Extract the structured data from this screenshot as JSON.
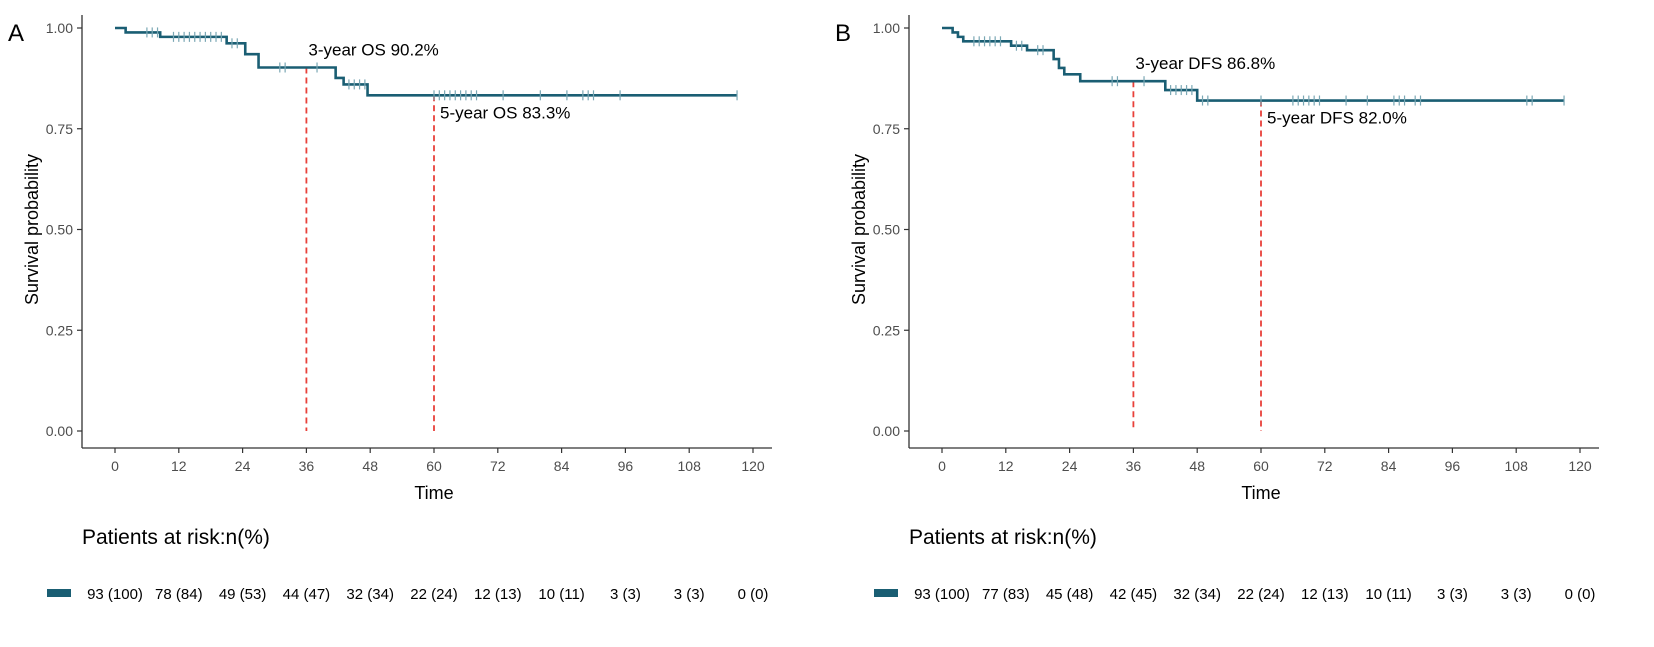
{
  "chart_data": [
    {
      "panel_label": "A",
      "type": "line",
      "subtype": "kaplan-meier",
      "xlabel": "Time",
      "ylabel": "Survival probability",
      "xlim": [
        0,
        120
      ],
      "ylim": [
        0,
        1
      ],
      "x_ticks": [
        0,
        12,
        24,
        36,
        48,
        60,
        72,
        84,
        96,
        108,
        120
      ],
      "x_tick_labels": [
        "0",
        "12",
        "24",
        "36",
        "48",
        "60",
        "72",
        "84",
        "96",
        "108",
        "120"
      ],
      "y_ticks": [
        0,
        0.25,
        0.5,
        0.75,
        1.0
      ],
      "y_tick_labels": [
        "0.00",
        "0.25",
        "0.50",
        "0.75",
        "1.00"
      ],
      "grid": false,
      "line_color": "#1a5e73",
      "reference_color": "#e8403a",
      "series": [
        {
          "name": "OS",
          "steps": [
            [
              0,
              1.0
            ],
            [
              2,
              0.989
            ],
            [
              8.5,
              0.978
            ],
            [
              21,
              0.962
            ],
            [
              24.5,
              0.935
            ],
            [
              27,
              0.902
            ],
            [
              41.5,
              0.876
            ],
            [
              43,
              0.86
            ],
            [
              47.5,
              0.833
            ],
            [
              117,
              0.833
            ]
          ],
          "censors": [
            [
              6,
              0.989
            ],
            [
              7,
              0.989
            ],
            [
              8,
              0.989
            ],
            [
              11,
              0.978
            ],
            [
              12,
              0.978
            ],
            [
              13,
              0.978
            ],
            [
              14,
              0.978
            ],
            [
              15,
              0.978
            ],
            [
              16,
              0.978
            ],
            [
              17,
              0.978
            ],
            [
              18,
              0.978
            ],
            [
              19,
              0.978
            ],
            [
              20,
              0.978
            ],
            [
              22,
              0.962
            ],
            [
              23,
              0.962
            ],
            [
              31,
              0.902
            ],
            [
              32,
              0.902
            ],
            [
              38,
              0.902
            ],
            [
              44,
              0.86
            ],
            [
              45,
              0.86
            ],
            [
              46,
              0.86
            ],
            [
              47,
              0.86
            ],
            [
              60,
              0.833
            ],
            [
              61,
              0.833
            ],
            [
              62,
              0.833
            ],
            [
              63,
              0.833
            ],
            [
              64,
              0.833
            ],
            [
              65,
              0.833
            ],
            [
              66,
              0.833
            ],
            [
              67,
              0.833
            ],
            [
              68,
              0.833
            ],
            [
              73,
              0.833
            ],
            [
              80,
              0.833
            ],
            [
              85,
              0.833
            ],
            [
              88,
              0.833
            ],
            [
              89,
              0.833
            ],
            [
              90,
              0.833
            ],
            [
              95,
              0.833
            ],
            [
              117,
              0.833
            ]
          ]
        }
      ],
      "reference_lines": [
        {
          "x": 36,
          "y": 0.902,
          "label": "3-year OS 90.2%"
        },
        {
          "x": 60,
          "y": 0.833,
          "label": "5-year OS 83.3%"
        }
      ],
      "risk_table": {
        "title": "Patients at risk:n(%)",
        "times": [
          0,
          12,
          24,
          36,
          48,
          60,
          72,
          84,
          96,
          108,
          120
        ],
        "values": [
          "93 (100)",
          "78 (84)",
          "49 (53)",
          "44 (47)",
          "32 (34)",
          "22 (24)",
          "12 (13)",
          "10 (11)",
          "3 (3)",
          "3 (3)",
          "0 (0)"
        ]
      }
    },
    {
      "panel_label": "B",
      "type": "line",
      "subtype": "kaplan-meier",
      "xlabel": "Time",
      "ylabel": "Survival probability",
      "xlim": [
        0,
        120
      ],
      "ylim": [
        0,
        1
      ],
      "x_ticks": [
        0,
        12,
        24,
        36,
        48,
        60,
        72,
        84,
        96,
        108,
        120
      ],
      "x_tick_labels": [
        "0",
        "12",
        "24",
        "36",
        "48",
        "60",
        "72",
        "84",
        "96",
        "108",
        "120"
      ],
      "y_ticks": [
        0,
        0.25,
        0.5,
        0.75,
        1.0
      ],
      "y_tick_labels": [
        "0.00",
        "0.25",
        "0.50",
        "0.75",
        "1.00"
      ],
      "grid": false,
      "line_color": "#1a5e73",
      "reference_color": "#e8403a",
      "series": [
        {
          "name": "DFS",
          "steps": [
            [
              0,
              1.0
            ],
            [
              2,
              0.989
            ],
            [
              3,
              0.978
            ],
            [
              4,
              0.967
            ],
            [
              13,
              0.956
            ],
            [
              16,
              0.945
            ],
            [
              21,
              0.923
            ],
            [
              22,
              0.901
            ],
            [
              23,
              0.885
            ],
            [
              26,
              0.868
            ],
            [
              42,
              0.846
            ],
            [
              48,
              0.82
            ],
            [
              117,
              0.82
            ]
          ],
          "censors": [
            [
              6,
              0.967
            ],
            [
              7,
              0.967
            ],
            [
              8,
              0.967
            ],
            [
              9,
              0.967
            ],
            [
              10,
              0.967
            ],
            [
              11,
              0.967
            ],
            [
              14,
              0.956
            ],
            [
              15,
              0.956
            ],
            [
              18,
              0.945
            ],
            [
              19,
              0.945
            ],
            [
              32,
              0.868
            ],
            [
              33,
              0.868
            ],
            [
              38,
              0.868
            ],
            [
              43,
              0.846
            ],
            [
              44,
              0.846
            ],
            [
              45,
              0.846
            ],
            [
              46,
              0.846
            ],
            [
              47,
              0.846
            ],
            [
              49,
              0.82
            ],
            [
              50,
              0.82
            ],
            [
              60,
              0.82
            ],
            [
              66,
              0.82
            ],
            [
              67,
              0.82
            ],
            [
              68,
              0.82
            ],
            [
              69,
              0.82
            ],
            [
              70,
              0.82
            ],
            [
              71,
              0.82
            ],
            [
              76,
              0.82
            ],
            [
              80,
              0.82
            ],
            [
              85,
              0.82
            ],
            [
              86,
              0.82
            ],
            [
              87,
              0.82
            ],
            [
              89,
              0.82
            ],
            [
              90,
              0.82
            ],
            [
              110,
              0.82
            ],
            [
              111,
              0.82
            ],
            [
              117,
              0.82
            ]
          ]
        }
      ],
      "reference_lines": [
        {
          "x": 36,
          "y": 0.868,
          "label": "3-year DFS 86.8%"
        },
        {
          "x": 60,
          "y": 0.82,
          "label": "5-year DFS 82.0%"
        }
      ],
      "risk_table": {
        "title": "Patients at risk:n(%)",
        "times": [
          0,
          12,
          24,
          36,
          48,
          60,
          72,
          84,
          96,
          108,
          120
        ],
        "values": [
          "93 (100)",
          "77 (83)",
          "45 (48)",
          "42 (45)",
          "32 (34)",
          "22 (24)",
          "12 (13)",
          "10 (11)",
          "3 (3)",
          "3 (3)",
          "0 (0)"
        ]
      }
    }
  ]
}
